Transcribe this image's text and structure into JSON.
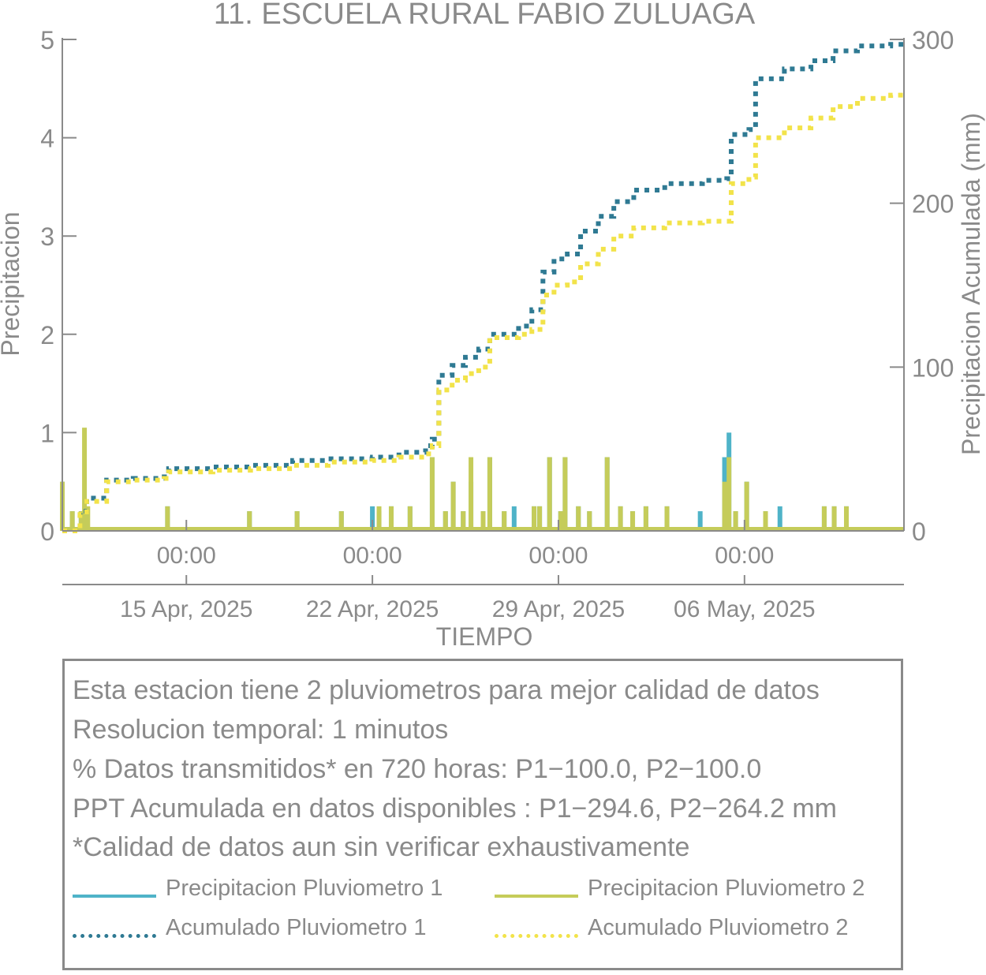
{
  "chart_data": {
    "type": "bar",
    "title": "11. ESCUELA RURAL FABIO ZULUAGA",
    "xlabel": "TIEMPO",
    "ylabel": "Precipitacion",
    "ylabel_right": "Precipitacion Acumulada (mm)",
    "ylim": [
      0,
      5
    ],
    "ylim_right": [
      0,
      300
    ],
    "yticks": [
      "0",
      "1",
      "2",
      "3",
      "4",
      "5"
    ],
    "yticks_right": [
      "0",
      "100",
      "200",
      "300"
    ],
    "x_range_days": [
      "2025-04-10T08:00",
      "2025-05-12T00:00"
    ],
    "xticks_time": [
      "00:00",
      "00:00",
      "00:00",
      "00:00"
    ],
    "xticks_date": [
      "15 Apr, 2025",
      "22 Apr, 2025",
      "29 Apr, 2025",
      "06 May, 2025"
    ],
    "xticks_at": [
      "2025-04-15T00:00",
      "2025-04-22T00:00",
      "2025-04-29T00:00",
      "2025-05-06T00:00"
    ],
    "colors": {
      "p1": "#4fb3c8",
      "p2": "#c5cc5a",
      "acc1": "#2f7a93",
      "acc2": "#f2e34a",
      "axis": "#8a8a8a"
    },
    "series": [
      {
        "name": "Precipitacion Pluviometro 1",
        "kind": "bar",
        "axis": "left",
        "x": [
          "2025-04-10T08:00",
          "2025-04-10T17:00",
          "2025-04-11T01:00",
          "2025-04-11T02:00",
          "2025-04-11T05:00",
          "2025-04-14T07:00",
          "2025-04-17T09:00",
          "2025-04-19T04:00",
          "2025-04-20T20:00",
          "2025-04-22T00:00",
          "2025-04-22T06:00",
          "2025-04-22T17:00",
          "2025-04-23T10:00",
          "2025-04-24T06:00",
          "2025-04-24T18:00",
          "2025-04-25T01:00",
          "2025-04-25T10:00",
          "2025-04-25T17:00",
          "2025-04-26T04:00",
          "2025-04-26T10:00",
          "2025-04-26T23:00",
          "2025-04-27T08:00",
          "2025-04-28T02:00",
          "2025-04-28T07:00",
          "2025-04-28T16:00",
          "2025-04-29T02:00",
          "2025-04-29T06:00",
          "2025-04-29T18:00",
          "2025-04-30T04:00",
          "2025-04-30T20:00",
          "2025-05-01T08:00",
          "2025-05-01T19:00",
          "2025-05-02T07:00",
          "2025-05-03T02:00",
          "2025-05-04T08:00",
          "2025-05-05T06:00",
          "2025-05-05T10:00",
          "2025-05-05T16:00",
          "2025-05-06T02:00",
          "2025-05-06T19:00",
          "2025-05-07T08:00",
          "2025-05-09T00:00",
          "2025-05-09T09:00",
          "2025-05-09T20:00"
        ],
        "values": [
          0.5,
          0.2,
          0.2,
          0.2,
          0.2,
          0.25,
          0.2,
          0.2,
          0.2,
          0.25,
          0.2,
          0.25,
          0.25,
          0.75,
          0.2,
          0.5,
          0.2,
          0.5,
          0.2,
          0.75,
          0.2,
          0.25,
          0.25,
          0.25,
          0.75,
          0.2,
          0.75,
          0.25,
          0.2,
          0.75,
          0.25,
          0.2,
          0.25,
          0.25,
          0.2,
          0.75,
          1.0,
          0.2,
          0.5,
          0.2,
          0.25,
          0.25,
          0.25,
          0.25
        ]
      },
      {
        "name": "Precipitacion Pluviometro 2",
        "kind": "bar",
        "axis": "left",
        "x": [
          "2025-04-10T08:00",
          "2025-04-10T17:00",
          "2025-04-11T01:00",
          "2025-04-11T04:00",
          "2025-04-11T07:00",
          "2025-04-14T07:00",
          "2025-04-17T09:00",
          "2025-04-19T04:00",
          "2025-04-20T20:00",
          "2025-04-22T06:00",
          "2025-04-22T17:00",
          "2025-04-23T10:00",
          "2025-04-24T06:00",
          "2025-04-24T18:00",
          "2025-04-25T01:00",
          "2025-04-25T10:00",
          "2025-04-25T17:00",
          "2025-04-26T04:00",
          "2025-04-26T10:00",
          "2025-04-26T23:00",
          "2025-04-28T02:00",
          "2025-04-28T07:00",
          "2025-04-28T16:00",
          "2025-04-29T02:00",
          "2025-04-29T06:00",
          "2025-04-29T18:00",
          "2025-04-30T04:00",
          "2025-04-30T20:00",
          "2025-05-01T08:00",
          "2025-05-01T19:00",
          "2025-05-02T07:00",
          "2025-05-03T02:00",
          "2025-05-05T06:00",
          "2025-05-05T10:00",
          "2025-05-05T16:00",
          "2025-05-06T02:00",
          "2025-05-06T19:00",
          "2025-05-09T00:00",
          "2025-05-09T09:00",
          "2025-05-09T20:00"
        ],
        "values": [
          0.5,
          0.2,
          0.2,
          1.05,
          0.25,
          0.25,
          0.2,
          0.2,
          0.2,
          0.25,
          0.25,
          0.25,
          0.75,
          0.2,
          0.5,
          0.2,
          0.75,
          0.2,
          0.75,
          0.2,
          0.25,
          0.25,
          0.75,
          0.2,
          0.75,
          0.25,
          0.2,
          0.75,
          0.25,
          0.2,
          0.25,
          0.25,
          0.5,
          0.75,
          0.2,
          0.5,
          0.2,
          0.25,
          0.25,
          0.25
        ]
      },
      {
        "name": "Acumulado Pluviometro 1",
        "kind": "dotted-line",
        "axis": "right",
        "x": [
          "2025-04-10T08:00",
          "2025-04-11T00:00",
          "2025-04-11T06:00",
          "2025-04-12T00:00",
          "2025-04-13T00:00",
          "2025-04-14T04:00",
          "2025-04-14T08:00",
          "2025-04-16T00:00",
          "2025-04-17T10:00",
          "2025-04-19T00:00",
          "2025-04-20T08:00",
          "2025-04-21T06:00",
          "2025-04-22T00:00",
          "2025-04-23T00:00",
          "2025-04-24T00:00",
          "2025-04-24T06:00",
          "2025-04-24T12:00",
          "2025-04-25T00:00",
          "2025-04-25T12:00",
          "2025-04-26T00:00",
          "2025-04-26T10:00",
          "2025-04-27T12:00",
          "2025-04-28T00:00",
          "2025-04-28T10:00",
          "2025-04-28T20:00",
          "2025-04-29T08:00",
          "2025-04-29T20:00",
          "2025-04-30T12:00",
          "2025-05-01T02:00",
          "2025-05-01T20:00",
          "2025-05-03T00:00",
          "2025-05-04T10:00",
          "2025-05-05T08:00",
          "2025-05-05T12:00",
          "2025-05-06T04:00",
          "2025-05-06T10:00",
          "2025-05-07T12:00",
          "2025-05-08T12:00",
          "2025-05-09T08:00",
          "2025-05-10T06:00",
          "2025-05-11T12:00"
        ],
        "values": [
          0,
          12,
          20,
          31,
          32,
          33,
          38,
          39,
          40,
          43,
          44,
          44,
          45,
          48,
          52,
          56,
          95,
          101,
          106,
          111,
          120,
          125,
          135,
          158,
          166,
          169,
          183,
          192,
          201,
          208,
          212,
          214,
          215,
          242,
          245,
          276,
          282,
          287,
          293,
          296,
          297
        ]
      },
      {
        "name": "Acumulado Pluviometro 2",
        "kind": "dotted-line",
        "axis": "right",
        "x": [
          "2025-04-10T08:00",
          "2025-04-11T00:00",
          "2025-04-11T06:00",
          "2025-04-12T00:00",
          "2025-04-13T00:00",
          "2025-04-14T04:00",
          "2025-04-14T08:00",
          "2025-04-16T00:00",
          "2025-04-17T10:00",
          "2025-04-19T00:00",
          "2025-04-20T08:00",
          "2025-04-21T06:00",
          "2025-04-22T00:00",
          "2025-04-23T00:00",
          "2025-04-24T00:00",
          "2025-04-24T06:00",
          "2025-04-24T12:00",
          "2025-04-25T00:00",
          "2025-04-25T12:00",
          "2025-04-26T00:00",
          "2025-04-26T10:00",
          "2025-04-27T12:00",
          "2025-04-28T00:00",
          "2025-04-28T10:00",
          "2025-04-28T20:00",
          "2025-04-29T08:00",
          "2025-04-29T20:00",
          "2025-04-30T12:00",
          "2025-05-01T02:00",
          "2025-05-01T20:00",
          "2025-05-03T00:00",
          "2025-05-04T10:00",
          "2025-05-05T08:00",
          "2025-05-05T12:00",
          "2025-05-06T04:00",
          "2025-05-06T10:00",
          "2025-05-07T12:00",
          "2025-05-08T12:00",
          "2025-05-09T08:00",
          "2025-05-10T06:00",
          "2025-05-11T12:00"
        ],
        "values": [
          0,
          10,
          18,
          30,
          31,
          32,
          36,
          37,
          38,
          40,
          42,
          42,
          43,
          45,
          47,
          52,
          86,
          92,
          96,
          100,
          118,
          120,
          123,
          144,
          150,
          152,
          163,
          172,
          180,
          185,
          188,
          189,
          189,
          212,
          216,
          240,
          246,
          252,
          259,
          264,
          266
        ]
      }
    ],
    "legend": "bottom"
  },
  "info": {
    "lines": [
      "Esta estacion tiene 2 pluviometros para mejor calidad de datos",
      "Resolucion temporal: 1 minutos",
      "% Datos transmitidos* en 720 horas: P1−100.0, P2−100.0",
      "PPT Acumulada en datos disponibles : P1−294.6, P2−264.2 mm",
      "*Calidad de datos aun sin verificar exhaustivamente"
    ]
  },
  "legend_items": [
    {
      "label": "Precipitacion Pluviometro 1",
      "style": "solid",
      "color": "#4fb3c8"
    },
    {
      "label": "Precipitacion Pluviometro 2",
      "style": "solid",
      "color": "#c5cc5a"
    },
    {
      "label": "Acumulado Pluviometro 1",
      "style": "dotted",
      "color": "#2f7a93"
    },
    {
      "label": "Acumulado Pluviometro 2",
      "style": "dotted",
      "color": "#f2e34a"
    }
  ]
}
